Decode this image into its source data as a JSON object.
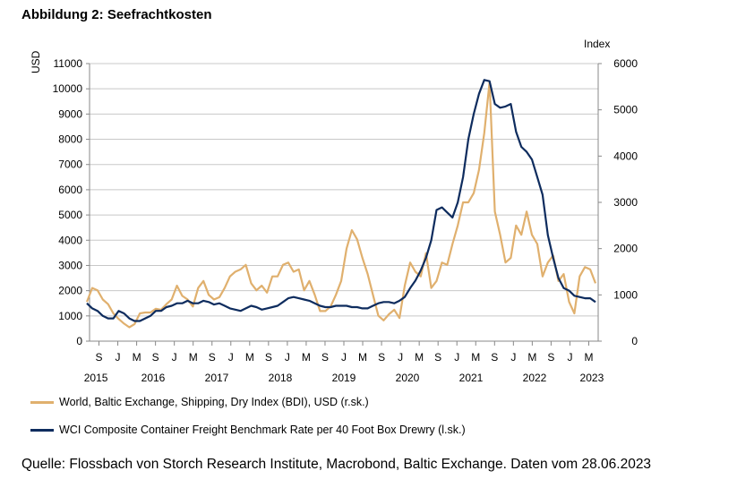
{
  "title": "Abbildung 2: Seefrachtkosten",
  "source": "Quelle: Flossbach von Storch Research Institute, Macrobond, Baltic Exchange. Daten vom 28.06.2023",
  "chart_data": {
    "type": "line",
    "title": "Abbildung 2: Seefrachtkosten",
    "left_axis": {
      "unit": "USD",
      "ylim": [
        0,
        11000
      ],
      "ticks": [
        0,
        1000,
        2000,
        3000,
        4000,
        5000,
        6000,
        7000,
        8000,
        9000,
        10000,
        11000
      ]
    },
    "right_axis": {
      "unit": "Index",
      "ylim": [
        0,
        6000
      ],
      "ticks": [
        0,
        1000,
        2000,
        3000,
        4000,
        5000,
        6000
      ]
    },
    "x_month_ticks": [
      "S",
      "J",
      "M",
      "S",
      "J",
      "M",
      "S",
      "J",
      "M",
      "S",
      "J",
      "M",
      "S",
      "J",
      "M",
      "S",
      "J",
      "M",
      "S",
      "J",
      "M",
      "S",
      "J",
      "M",
      "S",
      "J",
      "M"
    ],
    "x_year_labels": [
      "2015",
      "2016",
      "2017",
      "2018",
      "2019",
      "2020",
      "2021",
      "2022",
      "2023"
    ],
    "grid": true,
    "legend_position": "bottom",
    "colors": {
      "bdi": "#E0B06E",
      "wci": "#0E2C5E",
      "grid": "#c8c8c8"
    },
    "series": [
      {
        "name": "World, Baltic Exchange, Shipping, Dry Index (BDI), USD (r.sk.)",
        "axis": "right",
        "color": "#E0B06E",
        "points": [
          [
            "2015-06",
            850
          ],
          [
            "2015-07",
            1150
          ],
          [
            "2015-08",
            1100
          ],
          [
            "2015-09",
            900
          ],
          [
            "2015-10",
            800
          ],
          [
            "2015-11",
            600
          ],
          [
            "2015-12",
            480
          ],
          [
            "2016-01",
            380
          ],
          [
            "2016-02",
            300
          ],
          [
            "2016-03",
            370
          ],
          [
            "2016-04",
            600
          ],
          [
            "2016-05",
            620
          ],
          [
            "2016-06",
            620
          ],
          [
            "2016-07",
            700
          ],
          [
            "2016-08",
            680
          ],
          [
            "2016-09",
            800
          ],
          [
            "2016-10",
            900
          ],
          [
            "2016-11",
            1200
          ],
          [
            "2016-12",
            980
          ],
          [
            "2017-01",
            900
          ],
          [
            "2017-02",
            750
          ],
          [
            "2017-03",
            1150
          ],
          [
            "2017-04",
            1300
          ],
          [
            "2017-05",
            1000
          ],
          [
            "2017-06",
            900
          ],
          [
            "2017-07",
            950
          ],
          [
            "2017-08",
            1150
          ],
          [
            "2017-09",
            1400
          ],
          [
            "2017-10",
            1500
          ],
          [
            "2017-11",
            1550
          ],
          [
            "2017-12",
            1650
          ],
          [
            "2018-01",
            1250
          ],
          [
            "2018-02",
            1100
          ],
          [
            "2018-03",
            1200
          ],
          [
            "2018-04",
            1050
          ],
          [
            "2018-05",
            1400
          ],
          [
            "2018-06",
            1400
          ],
          [
            "2018-07",
            1650
          ],
          [
            "2018-08",
            1700
          ],
          [
            "2018-09",
            1500
          ],
          [
            "2018-10",
            1550
          ],
          [
            "2018-11",
            1100
          ],
          [
            "2018-12",
            1300
          ],
          [
            "2019-01",
            1000
          ],
          [
            "2019-02",
            650
          ],
          [
            "2019-03",
            650
          ],
          [
            "2019-04",
            750
          ],
          [
            "2019-05",
            1000
          ],
          [
            "2019-06",
            1300
          ],
          [
            "2019-07",
            2000
          ],
          [
            "2019-08",
            2400
          ],
          [
            "2019-09",
            2200
          ],
          [
            "2019-10",
            1800
          ],
          [
            "2019-11",
            1450
          ],
          [
            "2019-12",
            1000
          ],
          [
            "2020-01",
            550
          ],
          [
            "2020-02",
            450
          ],
          [
            "2020-03",
            580
          ],
          [
            "2020-04",
            680
          ],
          [
            "2020-05",
            500
          ],
          [
            "2020-06",
            1200
          ],
          [
            "2020-07",
            1700
          ],
          [
            "2020-08",
            1500
          ],
          [
            "2020-09",
            1400
          ],
          [
            "2020-10",
            1900
          ],
          [
            "2020-11",
            1150
          ],
          [
            "2020-12",
            1300
          ],
          [
            "2021-01",
            1700
          ],
          [
            "2021-02",
            1650
          ],
          [
            "2021-03",
            2100
          ],
          [
            "2021-04",
            2500
          ],
          [
            "2021-05",
            3000
          ],
          [
            "2021-06",
            3000
          ],
          [
            "2021-07",
            3200
          ],
          [
            "2021-08",
            3700
          ],
          [
            "2021-09",
            4500
          ],
          [
            "2021-10",
            5600
          ],
          [
            "2021-11",
            2800
          ],
          [
            "2021-12",
            2300
          ],
          [
            "2022-01",
            1700
          ],
          [
            "2022-02",
            1800
          ],
          [
            "2022-03",
            2500
          ],
          [
            "2022-04",
            2300
          ],
          [
            "2022-05",
            2800
          ],
          [
            "2022-06",
            2300
          ],
          [
            "2022-07",
            2100
          ],
          [
            "2022-08",
            1400
          ],
          [
            "2022-09",
            1700
          ],
          [
            "2022-10",
            1850
          ],
          [
            "2022-11",
            1300
          ],
          [
            "2022-12",
            1450
          ],
          [
            "2023-01",
            850
          ],
          [
            "2023-02",
            600
          ],
          [
            "2023-03",
            1400
          ],
          [
            "2023-04",
            1600
          ],
          [
            "2023-05",
            1550
          ],
          [
            "2023-06",
            1250
          ]
        ]
      },
      {
        "name": "WCI Composite Container Freight Benchmark Rate per 40 Foot Box Drewry (l.sk.)",
        "axis": "left",
        "color": "#0E2C5E",
        "points": [
          [
            "2015-06",
            1500
          ],
          [
            "2015-07",
            1300
          ],
          [
            "2015-08",
            1200
          ],
          [
            "2015-09",
            1000
          ],
          [
            "2015-10",
            900
          ],
          [
            "2015-11",
            900
          ],
          [
            "2015-12",
            1200
          ],
          [
            "2016-01",
            1100
          ],
          [
            "2016-02",
            900
          ],
          [
            "2016-03",
            800
          ],
          [
            "2016-04",
            800
          ],
          [
            "2016-05",
            900
          ],
          [
            "2016-06",
            1000
          ],
          [
            "2016-07",
            1200
          ],
          [
            "2016-08",
            1200
          ],
          [
            "2016-09",
            1350
          ],
          [
            "2016-10",
            1400
          ],
          [
            "2016-11",
            1500
          ],
          [
            "2016-12",
            1500
          ],
          [
            "2017-01",
            1600
          ],
          [
            "2017-02",
            1500
          ],
          [
            "2017-03",
            1500
          ],
          [
            "2017-04",
            1600
          ],
          [
            "2017-05",
            1550
          ],
          [
            "2017-06",
            1450
          ],
          [
            "2017-07",
            1500
          ],
          [
            "2017-08",
            1400
          ],
          [
            "2017-09",
            1300
          ],
          [
            "2017-10",
            1250
          ],
          [
            "2017-11",
            1200
          ],
          [
            "2017-12",
            1300
          ],
          [
            "2018-01",
            1400
          ],
          [
            "2018-02",
            1350
          ],
          [
            "2018-03",
            1250
          ],
          [
            "2018-04",
            1300
          ],
          [
            "2018-05",
            1350
          ],
          [
            "2018-06",
            1400
          ],
          [
            "2018-07",
            1550
          ],
          [
            "2018-08",
            1700
          ],
          [
            "2018-09",
            1750
          ],
          [
            "2018-10",
            1700
          ],
          [
            "2018-11",
            1650
          ],
          [
            "2018-12",
            1600
          ],
          [
            "2019-01",
            1500
          ],
          [
            "2019-02",
            1400
          ],
          [
            "2019-03",
            1350
          ],
          [
            "2019-04",
            1350
          ],
          [
            "2019-05",
            1400
          ],
          [
            "2019-06",
            1400
          ],
          [
            "2019-07",
            1400
          ],
          [
            "2019-08",
            1350
          ],
          [
            "2019-09",
            1350
          ],
          [
            "2019-10",
            1300
          ],
          [
            "2019-11",
            1300
          ],
          [
            "2019-12",
            1400
          ],
          [
            "2020-01",
            1500
          ],
          [
            "2020-02",
            1550
          ],
          [
            "2020-03",
            1550
          ],
          [
            "2020-04",
            1500
          ],
          [
            "2020-05",
            1600
          ],
          [
            "2020-06",
            1750
          ],
          [
            "2020-07",
            2100
          ],
          [
            "2020-08",
            2400
          ],
          [
            "2020-09",
            2800
          ],
          [
            "2020-10",
            3300
          ],
          [
            "2020-11",
            4000
          ],
          [
            "2020-12",
            5200
          ],
          [
            "2021-01",
            5300
          ],
          [
            "2021-02",
            5100
          ],
          [
            "2021-03",
            4900
          ],
          [
            "2021-04",
            5500
          ],
          [
            "2021-05",
            6500
          ],
          [
            "2021-06",
            8000
          ],
          [
            "2021-07",
            9000
          ],
          [
            "2021-08",
            9800
          ],
          [
            "2021-09",
            10350
          ],
          [
            "2021-10",
            10300
          ],
          [
            "2021-11",
            9400
          ],
          [
            "2021-12",
            9250
          ],
          [
            "2022-01",
            9300
          ],
          [
            "2022-02",
            9400
          ],
          [
            "2022-03",
            8300
          ],
          [
            "2022-04",
            7700
          ],
          [
            "2022-05",
            7500
          ],
          [
            "2022-06",
            7200
          ],
          [
            "2022-07",
            6500
          ],
          [
            "2022-08",
            5800
          ],
          [
            "2022-09",
            4200
          ],
          [
            "2022-10",
            3300
          ],
          [
            "2022-11",
            2500
          ],
          [
            "2022-12",
            2100
          ],
          [
            "2023-01",
            2000
          ],
          [
            "2023-02",
            1800
          ],
          [
            "2023-03",
            1750
          ],
          [
            "2023-04",
            1700
          ],
          [
            "2023-05",
            1700
          ],
          [
            "2023-06",
            1550
          ]
        ]
      }
    ]
  }
}
